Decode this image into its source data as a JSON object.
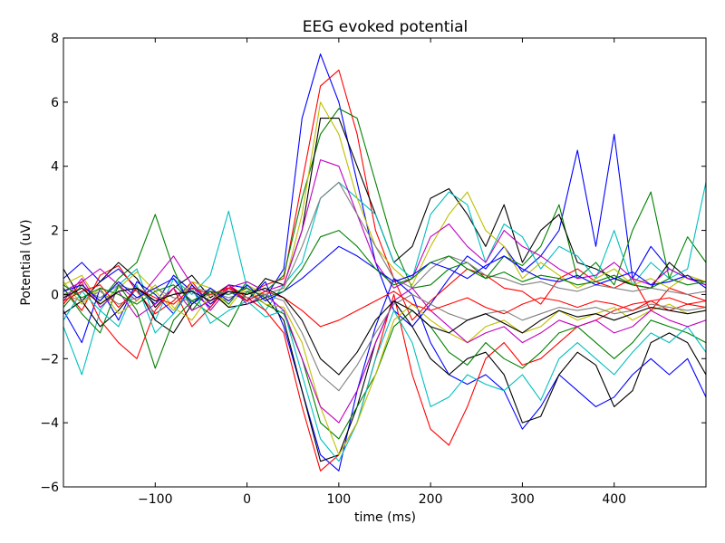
{
  "chart_data": {
    "type": "line",
    "title": "EEG evoked potential",
    "xlabel": "time (ms)",
    "ylabel": "Potential (uV)",
    "xlim": [
      -200,
      500
    ],
    "ylim": [
      -6,
      8
    ],
    "grid": false,
    "x_ticks": [
      -100,
      0,
      100,
      200,
      300,
      400
    ],
    "x_tick_labels": [
      "−100",
      "0",
      "100",
      "200",
      "300",
      "400"
    ],
    "y_ticks": [
      -6,
      -4,
      -2,
      0,
      2,
      4,
      6,
      8
    ],
    "y_tick_labels": [
      "−6",
      "−4",
      "−2",
      "0",
      "2",
      "4",
      "6",
      "8"
    ],
    "x": [
      -200,
      -180,
      -160,
      -140,
      -120,
      -100,
      -80,
      -60,
      -40,
      -20,
      0,
      20,
      40,
      60,
      80,
      100,
      120,
      140,
      160,
      180,
      200,
      220,
      240,
      260,
      280,
      300,
      320,
      340,
      360,
      380,
      400,
      420,
      440,
      460,
      480,
      500
    ],
    "series": [
      {
        "color": "#0000ff",
        "values": [
          0.5,
          1.0,
          0.4,
          0.8,
          0.2,
          -0.3,
          0.6,
          0.1,
          -0.4,
          0.3,
          0.2,
          -0.1,
          0.8,
          5.5,
          7.5,
          6.0,
          3.5,
          1.0,
          -0.5,
          -1.0,
          -0.3,
          0.5,
          1.2,
          0.8,
          1.5,
          0.7,
          1.2,
          2.0,
          4.5,
          1.5,
          5.0,
          0.5,
          1.5,
          0.8,
          0.5,
          0.3
        ]
      },
      {
        "color": "#ff0000",
        "values": [
          0.2,
          -0.5,
          0.6,
          0.9,
          0.1,
          -0.6,
          -0.2,
          0.4,
          -0.3,
          0.2,
          0.0,
          0.3,
          0.5,
          3.5,
          6.5,
          7.0,
          5.0,
          2.0,
          0.5,
          -0.8,
          -0.2,
          0.3,
          0.8,
          0.6,
          0.2,
          0.1,
          -0.3,
          0.5,
          0.8,
          0.4,
          0.2,
          0.5,
          -0.5,
          0.2,
          0.0,
          -0.2
        ]
      },
      {
        "color": "#008000",
        "values": [
          -0.4,
          0.3,
          -0.2,
          0.5,
          1.0,
          2.5,
          0.8,
          -0.5,
          0.2,
          -0.3,
          0.4,
          0.1,
          0.6,
          3.0,
          5.0,
          5.8,
          5.5,
          3.5,
          1.5,
          0.2,
          0.3,
          0.8,
          1.0,
          0.5,
          1.2,
          0.9,
          1.5,
          2.8,
          0.5,
          1.0,
          0.3,
          2.0,
          3.2,
          0.5,
          1.8,
          1.0
        ]
      },
      {
        "color": "#000000",
        "values": [
          0.8,
          -0.2,
          0.4,
          1.0,
          0.5,
          -0.4,
          0.2,
          0.6,
          -0.1,
          0.3,
          -0.2,
          0.5,
          0.3,
          2.0,
          5.5,
          5.5,
          4.0,
          2.5,
          1.0,
          1.5,
          3.0,
          3.3,
          2.5,
          1.5,
          2.8,
          1.0,
          2.0,
          2.5,
          1.0,
          0.8,
          0.5,
          0.3,
          0.2,
          1.0,
          0.5,
          0.4
        ]
      },
      {
        "color": "#00bfbf",
        "values": [
          -1.0,
          -2.5,
          -0.5,
          0.3,
          0.8,
          -0.8,
          0.5,
          0.0,
          0.6,
          2.6,
          0.2,
          -0.5,
          0.3,
          1.0,
          3.0,
          3.5,
          3.0,
          2.5,
          1.0,
          0.5,
          2.5,
          3.2,
          2.8,
          1.0,
          2.2,
          1.8,
          0.8,
          1.5,
          1.2,
          0.5,
          2.0,
          0.3,
          1.0,
          0.5,
          0.8,
          3.5
        ]
      },
      {
        "color": "#bfbf00",
        "values": [
          0.3,
          0.6,
          -0.3,
          0.2,
          0.7,
          0.1,
          -0.5,
          0.4,
          0.2,
          -0.4,
          0.3,
          0.0,
          0.2,
          2.5,
          6.0,
          5.0,
          3.0,
          1.5,
          0.8,
          0.3,
          1.5,
          2.5,
          3.2,
          2.0,
          1.5,
          0.5,
          1.0,
          0.6,
          0.2,
          0.5,
          0.8,
          0.3,
          0.5,
          0.2,
          0.6,
          0.4
        ]
      },
      {
        "color": "#bf00bf",
        "values": [
          0.1,
          0.4,
          0.8,
          0.3,
          -0.2,
          0.5,
          1.2,
          0.3,
          -0.5,
          0.2,
          0.4,
          0.1,
          0.3,
          2.0,
          4.2,
          4.0,
          2.5,
          1.0,
          0.2,
          0.5,
          1.8,
          2.2,
          1.5,
          1.0,
          2.0,
          1.5,
          1.2,
          0.8,
          0.5,
          0.6,
          1.0,
          0.5,
          0.3,
          0.8,
          0.5,
          0.3
        ]
      },
      {
        "color": "#808080",
        "values": [
          0.0,
          0.2,
          -0.1,
          0.3,
          0.1,
          -0.2,
          0.0,
          0.2,
          0.1,
          -0.1,
          0.1,
          0.0,
          0.2,
          1.5,
          3.0,
          3.5,
          2.5,
          1.5,
          0.5,
          0.2,
          0.8,
          1.2,
          1.0,
          0.6,
          0.5,
          0.3,
          0.4,
          0.2,
          0.1,
          0.3,
          0.2,
          0.1,
          0.2,
          0.1,
          0.0,
          0.1
        ]
      },
      {
        "color": "#0000ff",
        "values": [
          -0.5,
          -1.5,
          0.2,
          -0.8,
          0.4,
          0.0,
          -0.6,
          0.3,
          -0.3,
          0.1,
          -0.2,
          0.4,
          -1.0,
          -3.0,
          -5.0,
          -5.5,
          -3.0,
          -1.0,
          0.5,
          0.0,
          -1.5,
          -2.5,
          -2.8,
          -2.5,
          -3.0,
          -4.2,
          -3.5,
          -2.5,
          -3.0,
          -3.5,
          -3.2,
          -2.5,
          -2.0,
          -2.5,
          -2.0,
          -3.2
        ]
      },
      {
        "color": "#ff0000",
        "values": [
          -0.3,
          0.4,
          -0.8,
          -1.5,
          -2.0,
          -0.5,
          0.2,
          -1.0,
          -0.4,
          0.3,
          -0.1,
          -0.5,
          -1.2,
          -3.5,
          -5.5,
          -5.0,
          -4.0,
          -2.0,
          0.0,
          -2.5,
          -4.2,
          -4.7,
          -3.5,
          -2.0,
          -1.5,
          -2.2,
          -2.0,
          -1.5,
          -1.0,
          -0.8,
          -0.5,
          -0.3,
          -0.2,
          -0.5,
          -0.3,
          -0.4
        ]
      },
      {
        "color": "#000000",
        "values": [
          -0.6,
          -0.2,
          -1.0,
          -0.5,
          0.2,
          -0.8,
          -1.2,
          -0.3,
          0.1,
          -0.4,
          -0.3,
          -0.1,
          -0.8,
          -3.0,
          -5.2,
          -5.0,
          -3.5,
          -1.5,
          -0.2,
          -1.0,
          -2.0,
          -2.5,
          -2.0,
          -1.8,
          -2.5,
          -4.0,
          -3.8,
          -2.5,
          -1.8,
          -2.2,
          -3.5,
          -3.0,
          -1.5,
          -1.2,
          -1.5,
          -2.5
        ]
      },
      {
        "color": "#008000",
        "values": [
          0.2,
          -0.6,
          -1.2,
          0.3,
          -0.5,
          -2.3,
          -0.8,
          -0.2,
          -0.6,
          -1.0,
          0.1,
          -0.3,
          -0.6,
          -2.0,
          -4.0,
          -4.5,
          -3.5,
          -2.5,
          -1.0,
          -0.5,
          -1.0,
          -1.8,
          -2.2,
          -1.5,
          -2.0,
          -2.3,
          -1.8,
          -1.2,
          -1.0,
          -1.5,
          -2.0,
          -1.5,
          -0.8,
          -1.0,
          -1.2,
          -1.5
        ]
      },
      {
        "color": "#00bfbf",
        "values": [
          -0.8,
          0.1,
          -0.5,
          -1.0,
          0.3,
          -1.2,
          -0.6,
          0.2,
          -0.9,
          -0.5,
          -0.2,
          -0.7,
          -0.5,
          -2.5,
          -4.5,
          -5.2,
          -4.0,
          -2.0,
          -0.5,
          -1.5,
          -3.5,
          -3.2,
          -2.5,
          -2.8,
          -3.0,
          -2.5,
          -3.3,
          -2.0,
          -1.5,
          -2.0,
          -2.5,
          -1.8,
          -1.2,
          -1.5,
          -1.0,
          -1.8
        ]
      },
      {
        "color": "#bfbf00",
        "values": [
          0.4,
          -0.3,
          0.2,
          -0.6,
          -0.2,
          0.3,
          -0.4,
          -0.8,
          0.0,
          -0.2,
          0.2,
          -0.3,
          -0.4,
          -1.5,
          -3.5,
          -5.0,
          -4.0,
          -2.5,
          -0.8,
          -0.3,
          -0.8,
          -1.2,
          -1.5,
          -1.0,
          -0.8,
          -1.2,
          -1.0,
          -0.5,
          -0.8,
          -0.6,
          -0.4,
          -0.8,
          -0.5,
          -0.3,
          -0.6,
          -0.5
        ]
      },
      {
        "color": "#bf00bf",
        "values": [
          -0.2,
          0.5,
          -0.4,
          0.1,
          -0.7,
          -0.3,
          0.2,
          -0.5,
          -0.2,
          0.3,
          -0.3,
          0.0,
          -0.5,
          -2.0,
          -3.5,
          -4.0,
          -3.0,
          -1.5,
          -0.2,
          0.2,
          -0.5,
          -1.0,
          -1.5,
          -1.2,
          -1.0,
          -1.5,
          -1.2,
          -0.8,
          -1.0,
          -0.8,
          -1.2,
          -1.0,
          -0.5,
          -0.8,
          -1.0,
          -0.8
        ]
      },
      {
        "color": "#808080",
        "values": [
          0.0,
          -0.2,
          0.1,
          -0.3,
          -0.1,
          0.2,
          -0.1,
          -0.2,
          0.0,
          0.1,
          -0.1,
          0.0,
          -0.2,
          -1.2,
          -2.5,
          -3.0,
          -2.2,
          -1.2,
          -0.3,
          0.0,
          -0.3,
          -0.6,
          -0.8,
          -0.6,
          -0.5,
          -0.8,
          -0.6,
          -0.4,
          -0.5,
          -0.4,
          -0.6,
          -0.5,
          -0.3,
          -0.4,
          -0.5,
          -0.4
        ]
      },
      {
        "color": "#0000ff",
        "values": [
          0.1,
          0.3,
          -0.2,
          0.4,
          -0.1,
          0.2,
          0.5,
          -0.3,
          0.2,
          -0.2,
          0.3,
          -0.2,
          0.1,
          0.5,
          1.0,
          1.5,
          1.2,
          0.8,
          0.4,
          0.6,
          1.0,
          0.8,
          0.5,
          0.9,
          1.2,
          0.8,
          0.5,
          0.4,
          0.6,
          0.3,
          0.5,
          0.7,
          0.3,
          0.4,
          0.6,
          0.2
        ]
      },
      {
        "color": "#ff0000",
        "values": [
          -0.2,
          0.1,
          0.3,
          -0.4,
          0.2,
          -0.1,
          -0.3,
          0.2,
          0.0,
          0.2,
          -0.2,
          0.1,
          -0.1,
          -0.5,
          -1.0,
          -0.8,
          -0.5,
          -0.2,
          0.1,
          -0.3,
          -0.5,
          -0.3,
          -0.1,
          -0.4,
          -0.6,
          -0.3,
          -0.1,
          -0.2,
          -0.4,
          -0.2,
          -0.3,
          -0.5,
          -0.2,
          -0.1,
          -0.3,
          -0.2
        ]
      },
      {
        "color": "#008000",
        "values": [
          0.3,
          -0.1,
          0.2,
          0.0,
          -0.3,
          0.1,
          0.3,
          -0.2,
          0.1,
          0.0,
          0.2,
          -0.1,
          0.1,
          0.8,
          1.8,
          2.0,
          1.5,
          0.8,
          0.3,
          0.5,
          1.0,
          1.2,
          0.8,
          0.5,
          0.7,
          0.4,
          0.6,
          0.5,
          0.3,
          0.4,
          0.6,
          0.3,
          0.2,
          0.5,
          0.3,
          0.4
        ]
      },
      {
        "color": "#000000",
        "values": [
          -0.1,
          0.2,
          -0.3,
          0.1,
          0.2,
          -0.2,
          0.0,
          0.1,
          -0.2,
          0.1,
          0.0,
          0.2,
          -0.1,
          -0.8,
          -2.0,
          -2.5,
          -1.8,
          -0.8,
          -0.2,
          -0.5,
          -1.0,
          -1.2,
          -0.8,
          -0.6,
          -0.9,
          -1.2,
          -0.8,
          -0.5,
          -0.7,
          -0.6,
          -0.8,
          -0.6,
          -0.4,
          -0.5,
          -0.6,
          -0.5
        ]
      }
    ]
  }
}
